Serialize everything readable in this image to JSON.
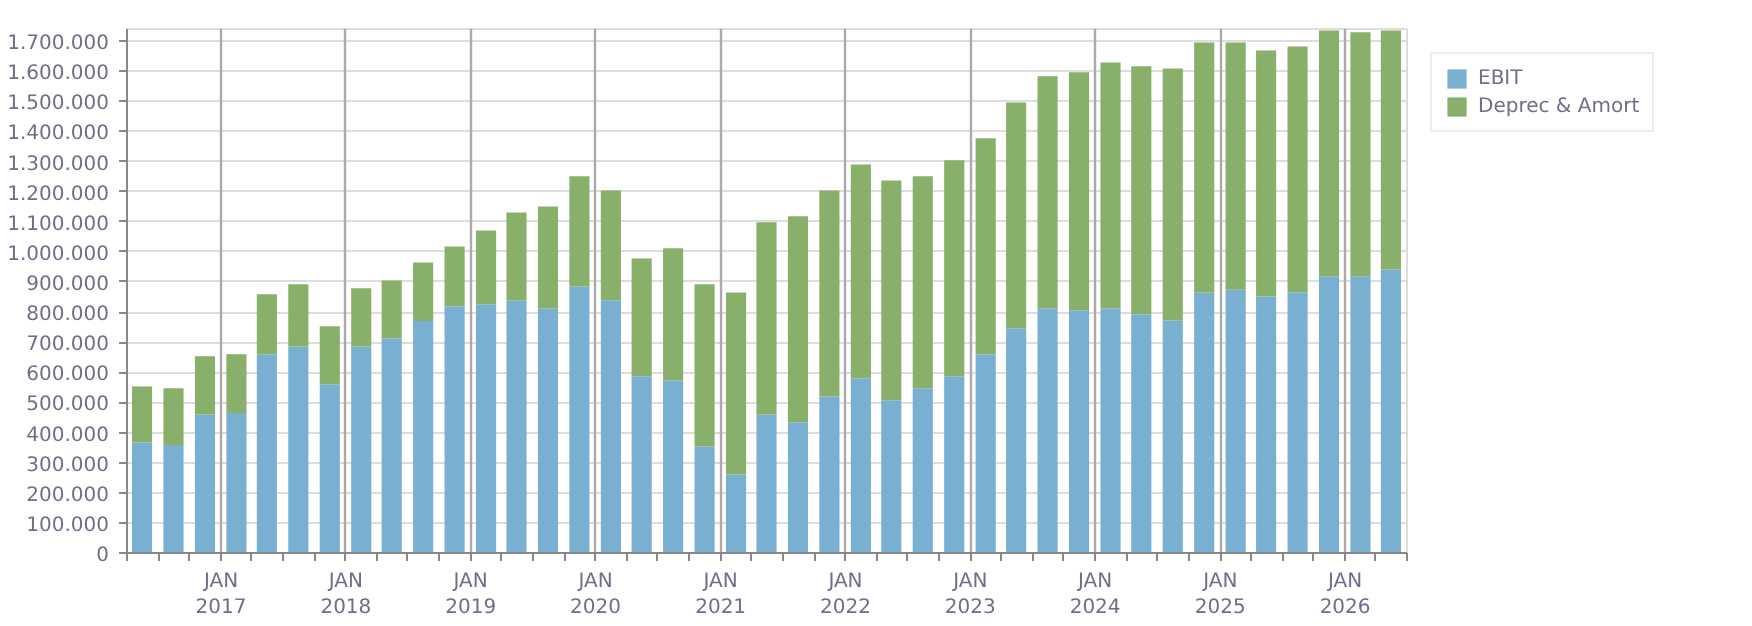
{
  "chart_data": {
    "type": "bar",
    "stacked": true,
    "x": [
      "2016-05-15",
      "2016-08-15",
      "2016-11-15",
      "2017-02-15",
      "2017-05-15",
      "2017-08-15",
      "2017-11-15",
      "2018-02-15",
      "2018-05-15",
      "2018-08-15",
      "2018-11-15",
      "2019-02-15",
      "2019-05-15",
      "2019-08-15",
      "2019-11-15",
      "2020-02-15",
      "2020-05-15",
      "2020-08-15",
      "2020-11-15",
      "2021-02-15",
      "2021-05-15",
      "2021-08-15",
      "2021-11-15",
      "2022-02-15",
      "2022-05-15",
      "2022-08-15",
      "2022-11-15",
      "2023-02-15",
      "2023-05-15",
      "2023-08-15",
      "2023-11-15",
      "2024-02-15",
      "2024-05-15",
      "2024-08-15",
      "2024-11-15",
      "2025-02-15",
      "2025-05-15",
      "2025-08-15",
      "2025-11-15",
      "2026-02-15",
      "2026-05-15"
    ],
    "series": [
      {
        "name": "EBIT",
        "color": "#79b0d2",
        "values": [
          367000,
          359000,
          460000,
          465000,
          660000,
          686000,
          560000,
          686000,
          713000,
          770000,
          819000,
          826000,
          839000,
          812000,
          885000,
          839000,
          587000,
          573000,
          354000,
          261000,
          460000,
          434000,
          520000,
          580000,
          507000,
          547000,
          587000,
          660000,
          746000,
          812000,
          806000,
          812000,
          792000,
          772000,
          865000,
          874000,
          852000,
          865000,
          919000,
          919000,
          941000
        ]
      },
      {
        "name": "Deprec & Amort",
        "color": "#89b06b",
        "values": [
          186000,
          188000,
          193000,
          195000,
          199000,
          206000,
          193000,
          193000,
          192000,
          195000,
          199000,
          245000,
          292000,
          339000,
          366000,
          365000,
          391000,
          439000,
          538000,
          604000,
          638000,
          684000,
          684000,
          710000,
          730000,
          704000,
          717000,
          717000,
          750000,
          771000,
          790000,
          817000,
          824000,
          837000,
          830000,
          821000,
          817000,
          817000,
          816000,
          810000,
          794000
        ]
      }
    ],
    "xlim": [
      "2016-04-01",
      "2026-07-01"
    ],
    "xticks": [
      {
        "value": "2016-04-01",
        "label": null
      },
      {
        "value": "2016-07-01",
        "label": null
      },
      {
        "value": "2016-10-01",
        "label": null
      },
      {
        "value": "2017-01-01",
        "label": "JAN\n2017"
      },
      {
        "value": "2017-04-01",
        "label": null
      },
      {
        "value": "2017-07-01",
        "label": null
      },
      {
        "value": "2017-10-01",
        "label": null
      },
      {
        "value": "2018-01-01",
        "label": "JAN\n2018"
      },
      {
        "value": "2018-04-01",
        "label": null
      },
      {
        "value": "2018-07-01",
        "label": null
      },
      {
        "value": "2018-10-01",
        "label": null
      },
      {
        "value": "2019-01-01",
        "label": "JAN\n2019"
      },
      {
        "value": "2019-04-01",
        "label": null
      },
      {
        "value": "2019-07-01",
        "label": null
      },
      {
        "value": "2019-10-01",
        "label": null
      },
      {
        "value": "2020-01-01",
        "label": "JAN\n2020"
      },
      {
        "value": "2020-04-01",
        "label": null
      },
      {
        "value": "2020-07-01",
        "label": null
      },
      {
        "value": "2020-10-01",
        "label": null
      },
      {
        "value": "2021-01-01",
        "label": "JAN\n2021"
      },
      {
        "value": "2021-04-01",
        "label": null
      },
      {
        "value": "2021-07-01",
        "label": null
      },
      {
        "value": "2021-10-01",
        "label": null
      },
      {
        "value": "2022-01-01",
        "label": "JAN\n2022"
      },
      {
        "value": "2022-04-01",
        "label": null
      },
      {
        "value": "2022-07-01",
        "label": null
      },
      {
        "value": "2022-10-01",
        "label": null
      },
      {
        "value": "2023-01-01",
        "label": "JAN\n2023"
      },
      {
        "value": "2023-04-01",
        "label": null
      },
      {
        "value": "2023-07-01",
        "label": null
      },
      {
        "value": "2023-10-01",
        "label": null
      },
      {
        "value": "2024-01-01",
        "label": "JAN\n2024"
      },
      {
        "value": "2024-04-01",
        "label": null
      },
      {
        "value": "2024-07-01",
        "label": null
      },
      {
        "value": "2024-10-01",
        "label": null
      },
      {
        "value": "2025-01-01",
        "label": "JAN\n2025"
      },
      {
        "value": "2025-04-01",
        "label": null
      },
      {
        "value": "2025-07-01",
        "label": null
      },
      {
        "value": "2025-10-01",
        "label": null
      },
      {
        "value": "2026-01-01",
        "label": "JAN\n2026"
      },
      {
        "value": "2026-04-01",
        "label": null
      },
      {
        "value": "2026-07-01",
        "label": null
      }
    ],
    "ylim": [
      0,
      1740000
    ],
    "yticks": [
      {
        "value": 0,
        "label": "0"
      },
      {
        "value": 100000,
        "label": "100.000"
      },
      {
        "value": 200000,
        "label": "200.000"
      },
      {
        "value": 300000,
        "label": "300.000"
      },
      {
        "value": 400000,
        "label": "400.000"
      },
      {
        "value": 500000,
        "label": "500.000"
      },
      {
        "value": 600000,
        "label": "600.000"
      },
      {
        "value": 700000,
        "label": "700.000"
      },
      {
        "value": 800000,
        "label": "800.000"
      },
      {
        "value": 900000,
        "label": "900.000"
      },
      {
        "value": 1000000,
        "label": "1.000.000"
      },
      {
        "value": 1100000,
        "label": "1.100.000"
      },
      {
        "value": 1200000,
        "label": "1.200.000"
      },
      {
        "value": 1300000,
        "label": "1.300.000"
      },
      {
        "value": 1400000,
        "label": "1.400.000"
      },
      {
        "value": 1500000,
        "label": "1.500.000"
      },
      {
        "value": 1600000,
        "label": "1.600.000"
      },
      {
        "value": 1700000,
        "label": "1.700.000"
      }
    ],
    "grid": true,
    "legend": "top right"
  }
}
